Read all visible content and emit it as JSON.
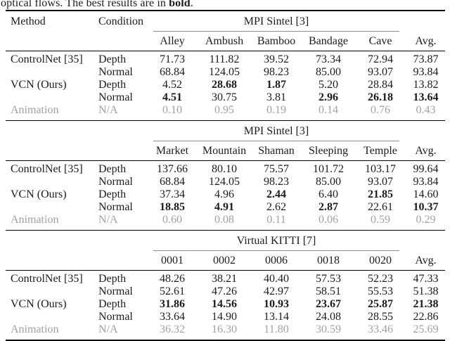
{
  "caption": {
    "prefix": "optical flows. The best results are in ",
    "bold_word": "bold",
    "suffix": "."
  },
  "table": {
    "method_header": "Method",
    "condition_header": "Condition",
    "sections": [
      {
        "group_title": "MPI Sintel [3]",
        "columns": [
          "Alley",
          "Ambush",
          "Bamboo",
          "Bandage",
          "Cave"
        ],
        "avg_header": "Avg.",
        "rows": [
          {
            "method": "ControlNet [35]",
            "condition": "Depth",
            "values": [
              "71.73",
              "111.82",
              "39.52",
              "73.34",
              "72.94",
              "73.87"
            ]
          },
          {
            "method": "",
            "condition": "Normal",
            "values": [
              "68.84",
              "124.05",
              "98.23",
              "85.00",
              "93.07",
              "93.84"
            ]
          },
          {
            "method": "VCN (Ours)",
            "condition": "Depth",
            "values": [
              "4.52",
              "28.68",
              "1.87",
              "5.20",
              "28.84",
              "13.82"
            ]
          },
          {
            "method": "",
            "condition": "Normal",
            "values": [
              "4.51",
              "30.75",
              "3.81",
              "2.96",
              "26.18",
              "13.64"
            ]
          },
          {
            "method": "Animation",
            "condition": "N/A",
            "values": [
              "0.10",
              "0.95",
              "0.19",
              "0.14",
              "0.76",
              "0.43"
            ]
          }
        ]
      },
      {
        "group_title": "MPI Sintel [3]",
        "columns": [
          "Market",
          "Mountain",
          "Shaman",
          "Sleeping",
          "Temple"
        ],
        "avg_header": "Avg.",
        "rows": [
          {
            "method": "ControlNet [35]",
            "condition": "Depth",
            "values": [
              "137.66",
              "80.10",
              "75.57",
              "101.72",
              "103.17",
              "99.64"
            ]
          },
          {
            "method": "",
            "condition": "Normal",
            "values": [
              "68.84",
              "124.05",
              "98.23",
              "85.00",
              "93.07",
              "93.84"
            ]
          },
          {
            "method": "VCN (Ours)",
            "condition": "Depth",
            "values": [
              "37.34",
              "4.96",
              "2.44",
              "6.40",
              "21.85",
              "14.60"
            ]
          },
          {
            "method": "",
            "condition": "Normal",
            "values": [
              "18.85",
              "4.91",
              "2.62",
              "2.87",
              "22.61",
              "10.37"
            ]
          },
          {
            "method": "Animation",
            "condition": "N/A",
            "values": [
              "0.60",
              "0.08",
              "0.11",
              "0.06",
              "0.59",
              "0.29"
            ]
          }
        ]
      },
      {
        "group_title": "Virtual KITTI [7]",
        "columns": [
          "0001",
          "0002",
          "0006",
          "0018",
          "0020"
        ],
        "avg_header": "Avg.",
        "rows": [
          {
            "method": "ControlNet [35]",
            "condition": "Depth",
            "values": [
              "48.26",
              "38.21",
              "40.40",
              "57.53",
              "52.23",
              "47.33"
            ]
          },
          {
            "method": "",
            "condition": "Normal",
            "values": [
              "52.61",
              "47.26",
              "42.97",
              "58.51",
              "55.53",
              "51.38"
            ]
          },
          {
            "method": "VCN (Ours)",
            "condition": "Depth",
            "values": [
              "31.86",
              "14.56",
              "10.93",
              "23.67",
              "25.87",
              "21.38"
            ]
          },
          {
            "method": "",
            "condition": "Normal",
            "values": [
              "33.64",
              "14.90",
              "13.14",
              "24.08",
              "28.55",
              "22.86"
            ]
          },
          {
            "method": "Animation",
            "condition": "N/A",
            "values": [
              "36.32",
              "16.30",
              "11.80",
              "30.59",
              "33.46",
              "25.69"
            ]
          }
        ]
      }
    ]
  },
  "colors": {
    "text": "#1b1b1b",
    "muted_row": "#a0a0a0",
    "heavy_rule": "#000000",
    "group_rule": "#8a8a8a"
  }
}
